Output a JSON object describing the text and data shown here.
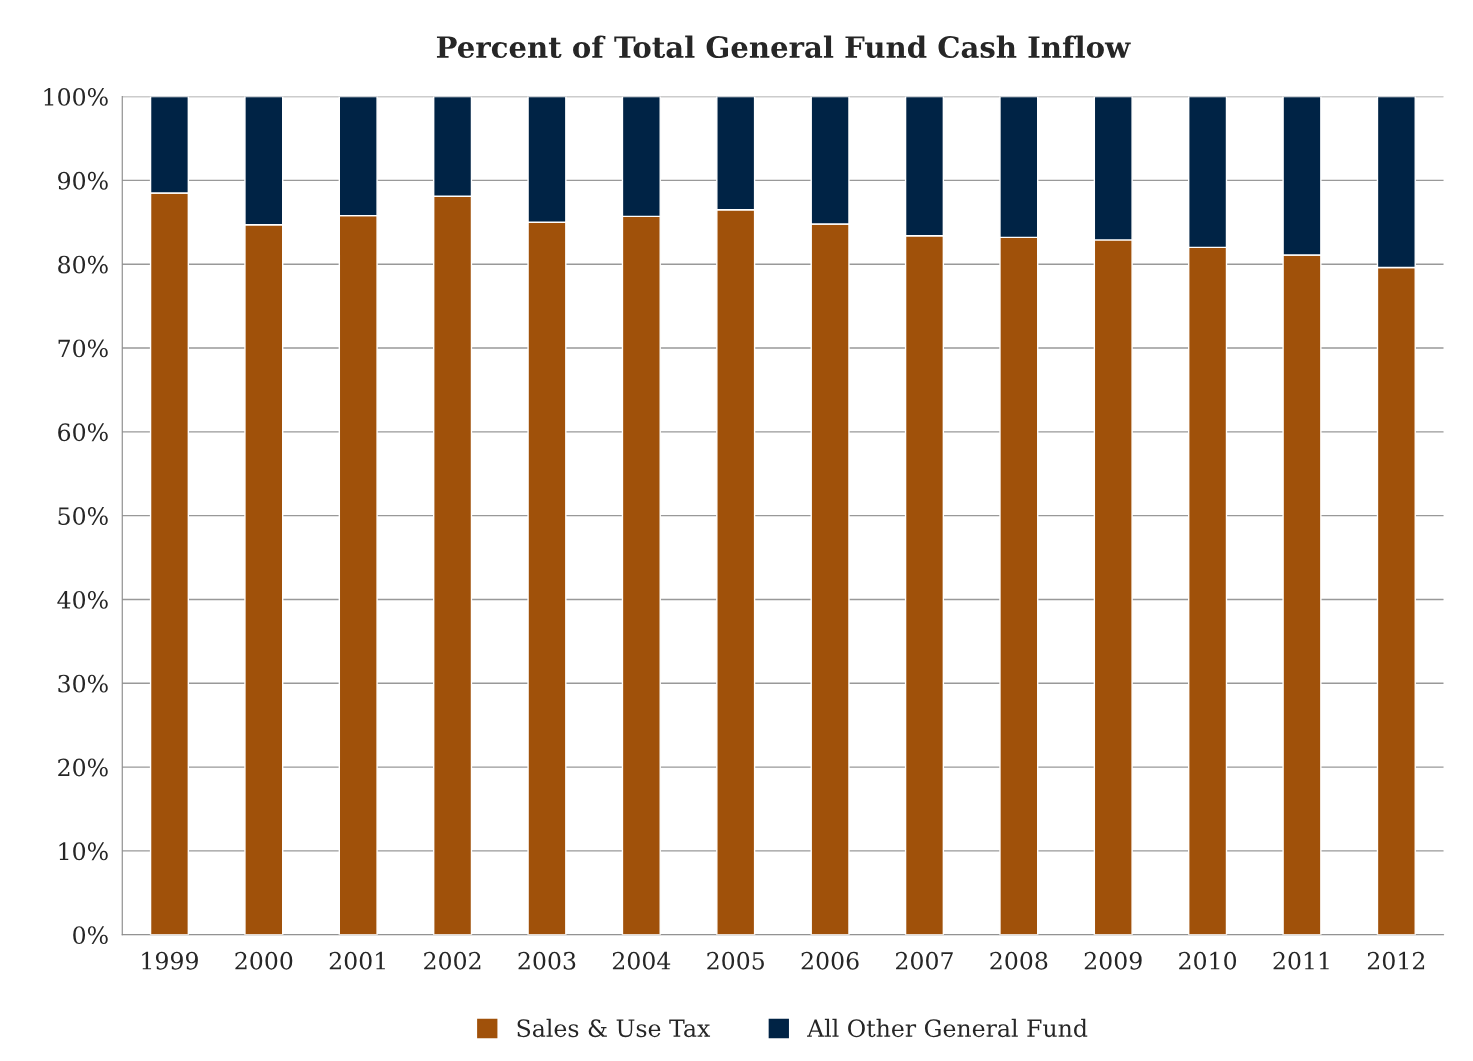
{
  "chart_data": {
    "type": "bar",
    "title": "Percent of Total General Fund Cash Inflow",
    "stacked": true,
    "categories": [
      "1999",
      "2000",
      "2001",
      "2002",
      "2003",
      "2004",
      "2005",
      "2006",
      "2007",
      "2008",
      "2009",
      "2010",
      "2011",
      "2012"
    ],
    "series": [
      {
        "name": "Sales & Use Tax",
        "color": "#a0510a",
        "values": [
          88.5,
          84.7,
          85.8,
          88.1,
          85.0,
          85.7,
          86.5,
          84.8,
          83.4,
          83.2,
          82.9,
          82.0,
          81.1,
          79.6
        ]
      },
      {
        "name": "All Other General Fund",
        "color": "#002345",
        "values": [
          11.5,
          15.3,
          14.2,
          11.9,
          15.0,
          14.3,
          13.5,
          15.2,
          16.6,
          16.8,
          17.1,
          18.0,
          18.9,
          20.4
        ]
      }
    ],
    "ylim": [
      0,
      100
    ],
    "yticks": [
      {
        "value": 0,
        "label": "0%"
      },
      {
        "value": 10,
        "label": "10%"
      },
      {
        "value": 20,
        "label": "20%"
      },
      {
        "value": 30,
        "label": "30%"
      },
      {
        "value": 40,
        "label": "40%"
      },
      {
        "value": 50,
        "label": "50%"
      },
      {
        "value": 60,
        "label": "60%"
      },
      {
        "value": 70,
        "label": "70%"
      },
      {
        "value": 80,
        "label": "80%"
      },
      {
        "value": 90,
        "label": "90%"
      },
      {
        "value": 100,
        "label": "100%"
      }
    ],
    "grid": "y",
    "legend": "bottom"
  }
}
